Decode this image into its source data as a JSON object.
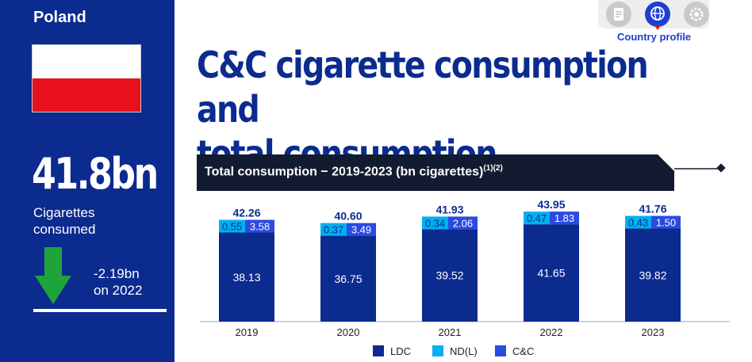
{
  "sidebar": {
    "country": "Poland",
    "headline_value": "41.8bn",
    "headline_label_1": "Cigarettes",
    "headline_label_2": "consumed",
    "change_value": "-2.19bn",
    "change_label": "on 2022"
  },
  "nav": {
    "active_label": "Country profile"
  },
  "title": {
    "line1": "C&C cigarette consumption and",
    "line2": "total consumption"
  },
  "chart_header": {
    "text": "Total consumption − 2019-2023 (bn cigarettes)",
    "footnote": "(1)(2)"
  },
  "colors": {
    "LDC": "#0b2b8f",
    "ND(L)": "#00b0f0",
    "C&C": "#2b4be0"
  },
  "chart_data": {
    "type": "bar",
    "stacked": true,
    "categories": [
      "2019",
      "2020",
      "2021",
      "2022",
      "2023"
    ],
    "series": [
      {
        "name": "LDC",
        "values": [
          38.13,
          36.75,
          39.52,
          41.65,
          39.82
        ]
      },
      {
        "name": "ND(L)",
        "values": [
          0.55,
          0.37,
          0.34,
          0.47,
          0.43
        ]
      },
      {
        "name": "C&C",
        "values": [
          3.58,
          3.49,
          2.06,
          1.83,
          1.5
        ]
      }
    ],
    "totals": [
      "42.26",
      "40.60",
      "41.93",
      "43.95",
      "41.76"
    ],
    "ldc_labels": [
      "38.13",
      "36.75",
      "39.52",
      "41.65",
      "39.82"
    ],
    "ndl_labels": [
      "0.55",
      "0.37",
      "0.34",
      "0.47",
      "0.43"
    ],
    "cc_labels": [
      "3.58",
      "3.49",
      "2.06",
      "1.83",
      "1.50"
    ],
    "legend": [
      "LDC",
      "ND(L)",
      "C&C"
    ],
    "legend_position": "bottom"
  }
}
